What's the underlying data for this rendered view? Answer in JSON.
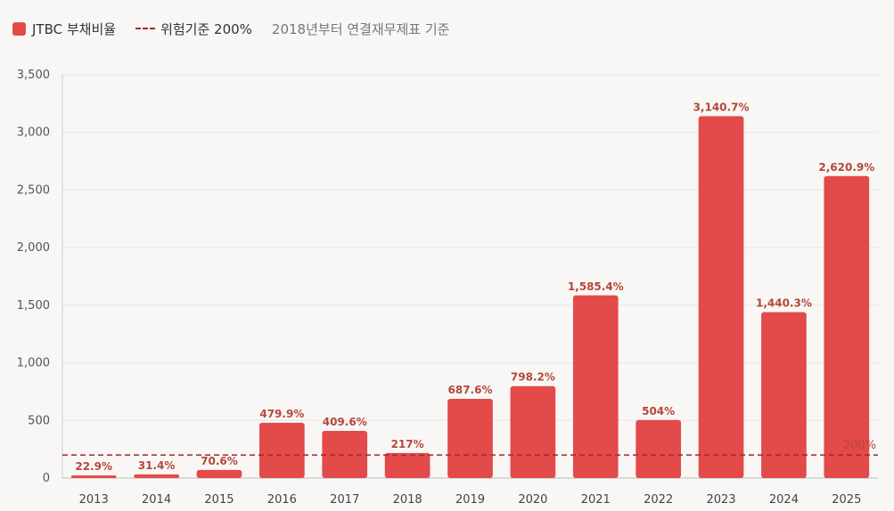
{
  "legend": {
    "series_label": "JTBC 부채비율",
    "threshold_label": "위험기준 200%",
    "note": "2018년부터 연결재무제표 기준"
  },
  "colors": {
    "bar": "#e34a4a",
    "threshold": "#a12a2a",
    "data_label": "#b5473a",
    "grid": "#e8e6e3",
    "background": "#f8f7f5"
  },
  "chart_data": {
    "type": "bar",
    "categories": [
      "2013",
      "2014",
      "2015",
      "2016",
      "2017",
      "2018",
      "2019",
      "2020",
      "2021",
      "2022",
      "2023",
      "2024",
      "2025"
    ],
    "series": [
      {
        "name": "JTBC 부채비율",
        "values": [
          22.9,
          31.4,
          70.6,
          479.9,
          409.6,
          217,
          687.6,
          798.2,
          1585.4,
          504,
          3140.7,
          1440.3,
          2620.9
        ],
        "labels": [
          "22.9%",
          "31.4%",
          "70.6%",
          "479.9%",
          "409.6%",
          "217%",
          "687.6%",
          "798.2%",
          "1,585.4%",
          "504%",
          "3,140.7%",
          "1,440.3%",
          "2,620.9%"
        ]
      }
    ],
    "ylim": [
      0,
      3500
    ],
    "yticks": [
      0,
      500,
      1000,
      1500,
      2000,
      2500,
      3000,
      3500
    ],
    "ytick_labels": [
      "0",
      "500",
      "1,000",
      "1,500",
      "2,000",
      "2,500",
      "3,000",
      "3,500"
    ],
    "reference_line": {
      "value": 200,
      "label": "200%"
    },
    "grid": true,
    "legend_position": "top-left",
    "xlabel": "",
    "ylabel": "",
    "title": ""
  }
}
